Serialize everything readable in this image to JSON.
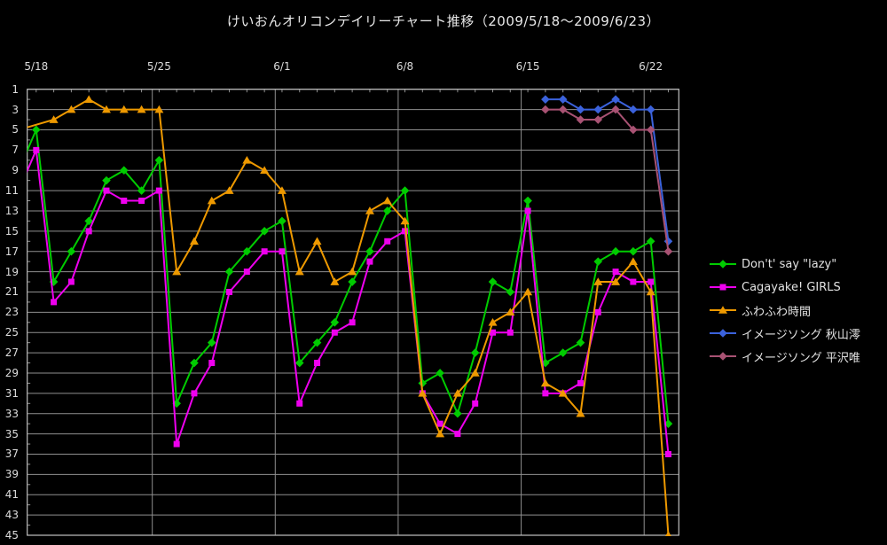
{
  "title": "けいおんオリコンデイリーチャート推移（2009/5/18～2009/6/23）",
  "colors": {
    "background": "#000000",
    "text": "#e8e8e8",
    "gridline": "#8f8f8f",
    "plot_border": "#c0c0c0",
    "series_green": "#00cc00",
    "series_magenta": "#ee00ee",
    "series_orange": "#ee9900",
    "series_blue": "#3b62dc",
    "series_mauve": "#a85273"
  },
  "chart_data": {
    "type": "line",
    "title": "けいおんオリコンデイリーチャート推移（2009/5/18～2009/6/23）",
    "y_axis": {
      "label": "",
      "inverted": true,
      "min": 1,
      "max": 45,
      "tick_labels": [
        1,
        3,
        5,
        7,
        9,
        11,
        13,
        15,
        17,
        19,
        21,
        23,
        25,
        27,
        29,
        31,
        33,
        35,
        37,
        39,
        41,
        43,
        45
      ]
    },
    "x_axis": {
      "label": "",
      "tick_labels": [
        "5/18",
        "5/25",
        "6/1",
        "6/8",
        "6/15",
        "6/22"
      ],
      "tick_day_index": [
        0,
        7,
        14,
        21,
        28,
        35
      ]
    },
    "grid": true,
    "legend_position": "right",
    "dates": [
      "5/18",
      "5/19",
      "5/20",
      "5/21",
      "5/22",
      "5/23",
      "5/24",
      "5/25",
      "5/26",
      "5/27",
      "5/28",
      "5/29",
      "5/30",
      "5/31",
      "6/1",
      "6/2",
      "6/3",
      "6/4",
      "6/5",
      "6/6",
      "6/7",
      "6/8",
      "6/9",
      "6/10",
      "6/11",
      "6/12",
      "6/13",
      "6/14",
      "6/15",
      "6/16",
      "6/17",
      "6/18",
      "6/19",
      "6/20",
      "6/21",
      "6/22",
      "6/23"
    ],
    "series": [
      {
        "name": "Don't' say \"lazy\"",
        "color": "#00cc00",
        "marker": "diamond",
        "lead_in": {
          "date": "5/17",
          "value": 9
        },
        "values": [
          5,
          20,
          17,
          14,
          10,
          9,
          11,
          8,
          32,
          28,
          26,
          19,
          17,
          15,
          14,
          28,
          26,
          24,
          20,
          17,
          13,
          11,
          30,
          29,
          33,
          27,
          20,
          21,
          12,
          28,
          27,
          26,
          18,
          17,
          17,
          16,
          34
        ]
      },
      {
        "name": "Cagayake! GIRLS",
        "color": "#ee00ee",
        "marker": "square",
        "lead_in": {
          "date": "5/17",
          "value": 11
        },
        "values": [
          7,
          22,
          20,
          15,
          11,
          12,
          12,
          11,
          36,
          31,
          28,
          21,
          19,
          17,
          17,
          32,
          28,
          25,
          24,
          18,
          16,
          15,
          31,
          34,
          35,
          32,
          25,
          25,
          13,
          31,
          31,
          30,
          23,
          19,
          20,
          20,
          37
        ]
      },
      {
        "name": "ふわふわ時間",
        "color": "#ee9900",
        "marker": "triangle",
        "lead_in": {
          "date": "5/17",
          "value": 5
        },
        "values": [
          null,
          4,
          3,
          2,
          3,
          3,
          3,
          3,
          19,
          16,
          12,
          11,
          8,
          9,
          11,
          19,
          16,
          20,
          19,
          13,
          12,
          14,
          31,
          35,
          31,
          29,
          24,
          23,
          21,
          30,
          31,
          33,
          20,
          20,
          18,
          21,
          45
        ]
      },
      {
        "name": "イメージソング 秋山澪",
        "color": "#3b62dc",
        "marker": "diamond",
        "lead_in": null,
        "values": [
          null,
          null,
          null,
          null,
          null,
          null,
          null,
          null,
          null,
          null,
          null,
          null,
          null,
          null,
          null,
          null,
          null,
          null,
          null,
          null,
          null,
          null,
          null,
          null,
          null,
          null,
          null,
          null,
          null,
          2,
          2,
          3,
          3,
          2,
          3,
          3,
          16
        ]
      },
      {
        "name": "イメージソング 平沢唯",
        "color": "#a85273",
        "marker": "diamond",
        "lead_in": null,
        "values": [
          null,
          null,
          null,
          null,
          null,
          null,
          null,
          null,
          null,
          null,
          null,
          null,
          null,
          null,
          null,
          null,
          null,
          null,
          null,
          null,
          null,
          null,
          null,
          null,
          null,
          null,
          null,
          null,
          null,
          3,
          3,
          4,
          4,
          3,
          5,
          5,
          17
        ]
      }
    ]
  }
}
